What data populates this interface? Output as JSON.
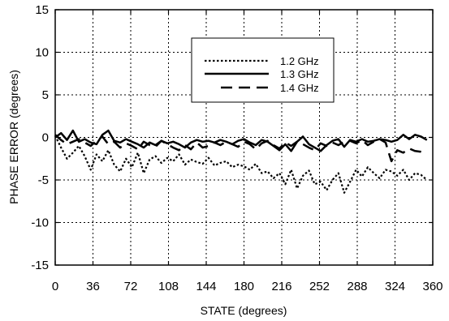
{
  "chart_data": {
    "type": "line",
    "xlabel": "STATE (degrees)",
    "ylabel": "PHASE ERROR  (degrees)",
    "xlim": [
      0,
      360
    ],
    "ylim": [
      -15,
      15
    ],
    "xticks": [
      "0",
      "36",
      "72",
      "108",
      "144",
      "180",
      "216",
      "252",
      "288",
      "324",
      "360"
    ],
    "yticks": [
      "15",
      "10",
      "5",
      "0",
      "-5",
      "-10",
      "-15"
    ],
    "grid": true,
    "legend_position": "top-right",
    "series": [
      {
        "name": "1.2 GHz",
        "style": "dotted",
        "x": [
          0,
          5.6,
          11.2,
          16.9,
          22.5,
          28.1,
          33.8,
          39.4,
          45,
          50.6,
          56.2,
          61.9,
          67.5,
          73.1,
          78.8,
          84.4,
          90,
          95.6,
          101.2,
          106.9,
          112.5,
          118.1,
          123.8,
          129.4,
          135,
          140.6,
          146.2,
          151.9,
          157.5,
          163.1,
          168.8,
          174.4,
          180,
          185.6,
          191.2,
          196.9,
          202.5,
          208.1,
          213.8,
          219.4,
          225,
          230.6,
          236.2,
          241.9,
          247.5,
          253.1,
          258.8,
          264.4,
          270,
          275.6,
          281.2,
          286.9,
          292.5,
          298.1,
          303.8,
          309.4,
          315,
          320.6,
          326.2,
          331.9,
          337.5,
          343.1,
          348.8,
          354.4
        ],
        "values": [
          0.2,
          -1.2,
          -2.5,
          -1.8,
          -1,
          -2.2,
          -3.8,
          -2,
          -2.8,
          -1.5,
          -3.2,
          -4,
          -2.5,
          -3.5,
          -1.8,
          -4.2,
          -2.6,
          -2.2,
          -3,
          -2.4,
          -2.8,
          -2,
          -3.2,
          -2.6,
          -2.9,
          -3.1,
          -2.4,
          -3.3,
          -3,
          -2.8,
          -3.5,
          -3.2,
          -3.4,
          -3.8,
          -3.1,
          -4.2,
          -4,
          -4.8,
          -4.2,
          -5.5,
          -3.8,
          -6,
          -4.5,
          -3.9,
          -5.5,
          -5.2,
          -6.2,
          -5,
          -4.2,
          -6.5,
          -5.2,
          -3.8,
          -4.6,
          -3.5,
          -4.2,
          -4.8,
          -3.8,
          -4,
          -4.5,
          -3.8,
          -5,
          -4.2,
          -4.4,
          -5
        ]
      },
      {
        "name": "1.3 GHz",
        "style": "solid",
        "x": [
          0,
          5.6,
          11.2,
          16.9,
          22.5,
          28.1,
          33.8,
          39.4,
          45,
          50.6,
          56.2,
          61.9,
          67.5,
          73.1,
          78.8,
          84.4,
          90,
          95.6,
          101.2,
          106.9,
          112.5,
          118.1,
          123.8,
          129.4,
          135,
          140.6,
          146.2,
          151.9,
          157.5,
          163.1,
          168.8,
          174.4,
          180,
          185.6,
          191.2,
          196.9,
          202.5,
          208.1,
          213.8,
          219.4,
          225,
          230.6,
          236.2,
          241.9,
          247.5,
          253.1,
          258.8,
          264.4,
          270,
          275.6,
          281.2,
          286.9,
          292.5,
          298.1,
          303.8,
          309.4,
          315,
          320.6,
          326.2,
          331.9,
          337.5,
          343.1,
          348.8,
          354.4
        ],
        "values": [
          0,
          0.5,
          -0.3,
          0.8,
          -0.5,
          -0.2,
          -0.6,
          -0.8,
          0.3,
          0.8,
          -0.4,
          -0.6,
          -0.2,
          -0.5,
          -0.8,
          -1.2,
          -0.6,
          -0.9,
          -0.4,
          -0.7,
          -0.5,
          -0.8,
          -1.2,
          -0.6,
          -0.3,
          -0.5,
          -0.4,
          -0.6,
          -0.3,
          -0.5,
          -0.8,
          -0.4,
          -0.2,
          -0.6,
          -0.9,
          -0.3,
          -0.5,
          -1,
          -1.5,
          -0.8,
          -1.6,
          -0.5,
          0.1,
          -0.8,
          -1.2,
          -1.6,
          -0.9,
          -0.4,
          -0.2,
          -1.1,
          -0.3,
          -0.5,
          -0.2,
          -0.5,
          -0.4,
          -0.2,
          -0.3,
          -0.5,
          -0.3,
          0.3,
          -0.2,
          0.3,
          0.1,
          -0.3
        ]
      },
      {
        "name": "1.4 GHz",
        "style": "dashed",
        "x": [
          0,
          5.6,
          11.2,
          16.9,
          22.5,
          28.1,
          33.8,
          39.4,
          45,
          50.6,
          56.2,
          61.9,
          67.5,
          73.1,
          78.8,
          84.4,
          90,
          95.6,
          101.2,
          106.9,
          112.5,
          118.1,
          123.8,
          129.4,
          135,
          140.6,
          146.2,
          151.9,
          157.5,
          163.1,
          168.8,
          174.4,
          180,
          185.6,
          191.2,
          196.9,
          202.5,
          208.1,
          213.8,
          219.4,
          225,
          230.6,
          236.2,
          241.9,
          247.5,
          253.1,
          258.8,
          264.4,
          270,
          275.6,
          281.2,
          286.9,
          292.5,
          298.1,
          303.8,
          309.4,
          315,
          320.6,
          326.2,
          331.9,
          337.5,
          343.1,
          348.8,
          354.4
        ],
        "values": [
          0.3,
          -0.3,
          -0.8,
          -0.5,
          -0.2,
          -0.6,
          -1,
          -0.4,
          0.1,
          -0.8,
          -0.5,
          -1.2,
          -0.7,
          -1,
          -1.4,
          -0.5,
          -0.9,
          -1.1,
          -0.4,
          -0.8,
          -1.2,
          -1.5,
          -0.9,
          -1.4,
          -0.6,
          -1.2,
          -1,
          -0.6,
          -0.9,
          -0.5,
          -0.8,
          -1.1,
          -0.5,
          -0.8,
          -1.4,
          -0.7,
          -0.4,
          -0.9,
          -1.3,
          -0.6,
          -1,
          -0.5,
          -0.8,
          -1.2,
          -1.5,
          -0.7,
          -1,
          -0.6,
          -0.9,
          -0.5,
          -0.4,
          -0.7,
          -0.3,
          -0.9,
          -0.5,
          -0.2,
          -0.6,
          -2.8,
          -1.5,
          -1.8,
          -1.3,
          -1.6,
          -1.7,
          -1.9
        ]
      }
    ]
  }
}
